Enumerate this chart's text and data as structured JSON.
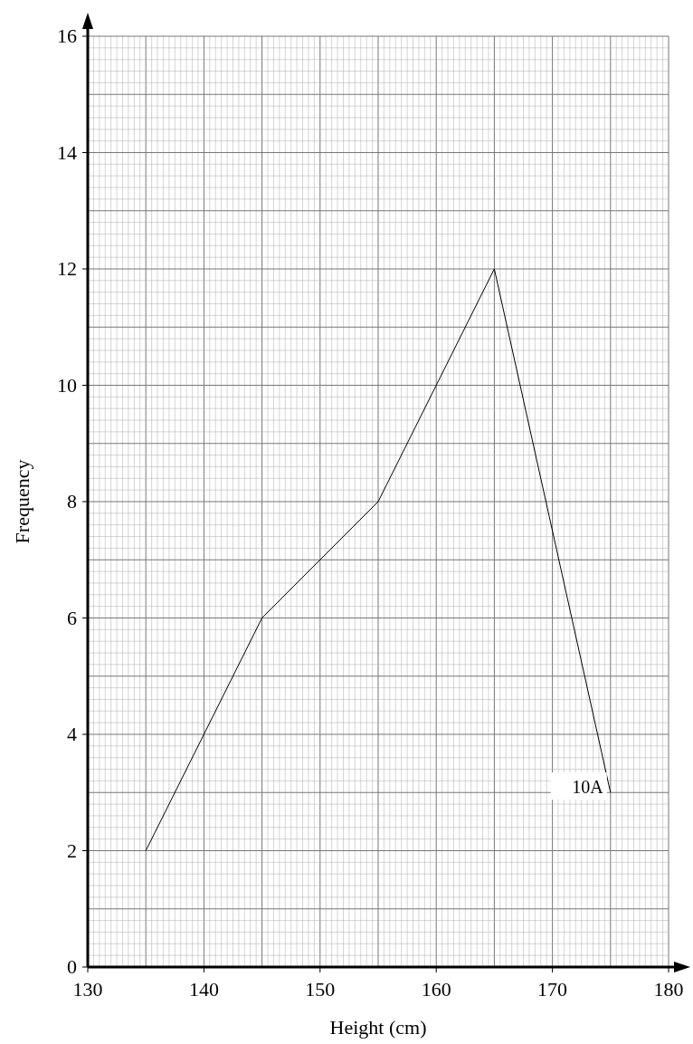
{
  "chart_data": {
    "type": "line",
    "xlabel": "Height (cm)",
    "ylabel": "Frequency",
    "x": [
      135,
      145,
      155,
      165,
      175
    ],
    "series": [
      {
        "name": "10A",
        "color": "#000000",
        "values": [
          2,
          6,
          8,
          12,
          3
        ]
      }
    ],
    "xlim": [
      130,
      180
    ],
    "ylim": [
      0,
      16
    ],
    "xticks": [
      130,
      140,
      150,
      160,
      170,
      180
    ],
    "yticks": [
      0,
      2,
      4,
      6,
      8,
      10,
      12,
      14,
      16
    ],
    "grid": true,
    "marker": "none",
    "line_style": "solid"
  }
}
